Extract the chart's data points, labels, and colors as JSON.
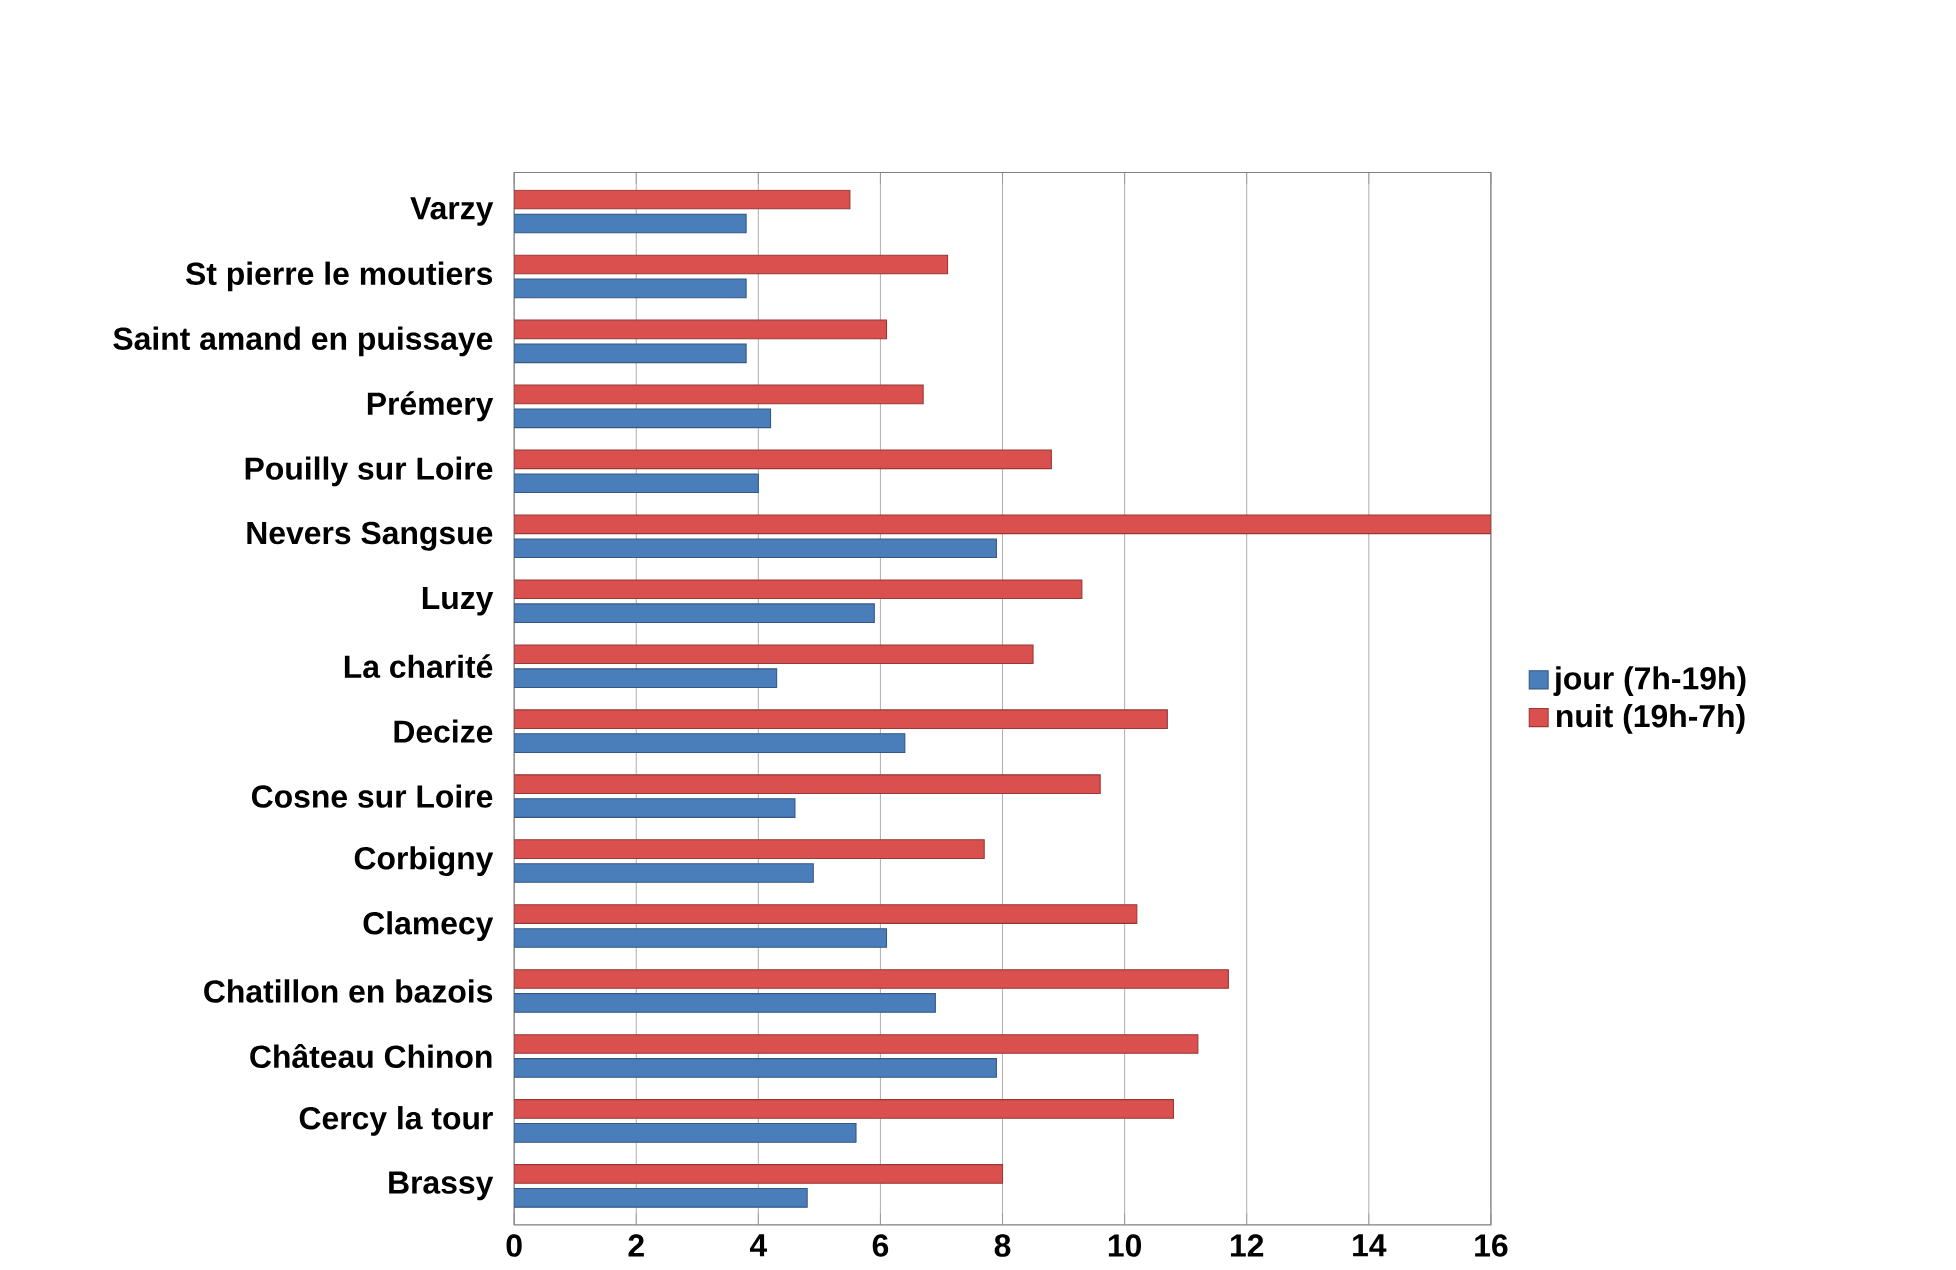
{
  "chart_data": {
    "type": "bar",
    "orientation": "horizontal",
    "categories": [
      "Varzy",
      "St pierre le moutiers",
      "Saint amand en puissaye",
      "Prémery",
      "Pouilly sur Loire",
      "Nevers Sangsue",
      "Luzy",
      "La charité",
      "Decize",
      "Cosne sur Loire",
      "Corbigny",
      "Clamecy",
      "Chatillon en bazois",
      "Château Chinon",
      "Cercy la tour",
      "Brassy"
    ],
    "series": [
      {
        "name": "jour (7h-19h)",
        "color": "#4a7ebb",
        "values": [
          3.8,
          3.8,
          3.8,
          4.2,
          4.0,
          7.9,
          5.9,
          4.3,
          6.4,
          4.6,
          4.9,
          6.1,
          6.9,
          7.9,
          5.6,
          4.8
        ]
      },
      {
        "name": "nuit (19h-7h)",
        "color": "#d9504e",
        "values": [
          5.5,
          7.1,
          6.1,
          6.7,
          8.8,
          16.0,
          9.3,
          8.5,
          10.7,
          9.6,
          7.7,
          10.2,
          11.7,
          11.2,
          10.8,
          8.0
        ]
      }
    ],
    "xlim": [
      0,
      16
    ],
    "xticks": [
      0,
      2,
      4,
      6,
      8,
      10,
      12,
      14,
      16
    ],
    "grid": "x",
    "legend": "right"
  }
}
